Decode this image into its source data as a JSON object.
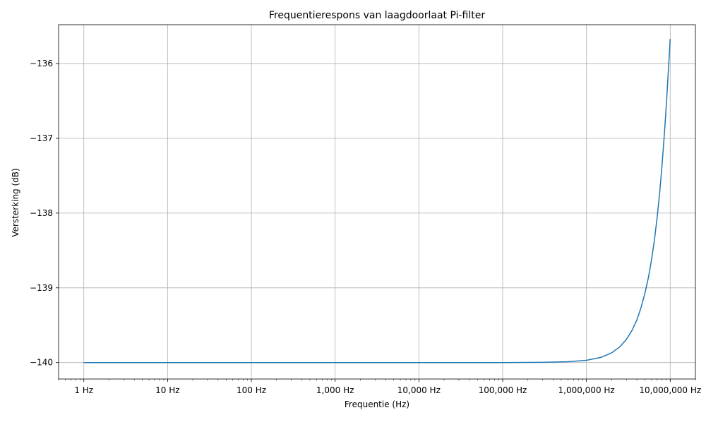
{
  "chart_data": {
    "type": "line",
    "title": "Frequentierespons van laagdoorlaat Pi-filter",
    "xlabel": "Frequentie (Hz)",
    "ylabel": "Versterking (dB)",
    "xscale": "log",
    "xlim": [
      0.5,
      20000000
    ],
    "ylim": [
      -140.22,
      -135.48
    ],
    "grid": true,
    "line_color": "#1f77b4",
    "x_ticks": [
      {
        "value": 1,
        "label": "1 Hz"
      },
      {
        "value": 10,
        "label": "10 Hz"
      },
      {
        "value": 100,
        "label": "100 Hz"
      },
      {
        "value": 1000,
        "label": "1,000 Hz"
      },
      {
        "value": 10000,
        "label": "10,000 Hz"
      },
      {
        "value": 100000,
        "label": "100,000 Hz"
      },
      {
        "value": 1000000,
        "label": "1,000,000 Hz"
      },
      {
        "value": 10000000,
        "label": "10,000,000 Hz"
      }
    ],
    "y_ticks": [
      {
        "value": -140,
        "label": "−140"
      },
      {
        "value": -139,
        "label": "−139"
      },
      {
        "value": -138,
        "label": "−138"
      },
      {
        "value": -137,
        "label": "−137"
      },
      {
        "value": -136,
        "label": "−136"
      }
    ],
    "series": [
      {
        "x": [
          1,
          10,
          100,
          1000,
          10000,
          100000,
          300000,
          600000,
          1000000,
          1500000,
          2000000,
          2500000,
          3000000,
          3500000,
          4000000,
          4500000,
          5000000,
          5500000,
          6000000,
          6500000,
          7000000,
          7500000,
          8000000,
          8500000,
          9000000,
          9500000,
          10000000
        ],
        "y": [
          -140.0,
          -140.0,
          -140.0,
          -140.0,
          -140.0,
          -140.0,
          -139.997,
          -139.989,
          -139.97,
          -139.93,
          -139.87,
          -139.79,
          -139.69,
          -139.57,
          -139.43,
          -139.26,
          -139.07,
          -138.86,
          -138.62,
          -138.35,
          -138.05,
          -137.72,
          -137.35,
          -136.96,
          -136.55,
          -136.1,
          -135.67
        ]
      }
    ]
  }
}
